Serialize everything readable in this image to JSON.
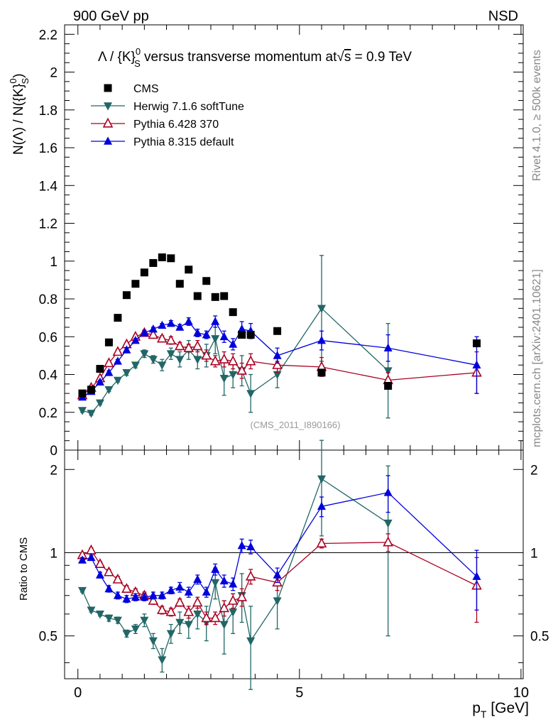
{
  "header": {
    "left": "900 GeV pp",
    "right": "NSD"
  },
  "side": {
    "rivet": "Rivet 4.1.0, ≥ 500k events",
    "mcplots": "mcplots.cern.ch [arXiv:2401.10621]"
  },
  "chart_data": {
    "type": "scatter",
    "title": "Λ / {K}⁰_S versus transverse momentum at √s = 0.9 TeV",
    "title_parts": {
      "lead": "Λ / {K}",
      "sup": "0",
      "sub": "S",
      "mid": " versus transverse momentum at",
      "root": "√",
      "s": "s",
      "tail": " = 0.9 TeV"
    },
    "ylabel": "N(Λ)  /  N({K}⁰_S)",
    "ylabel_parts": {
      "lead": "N(Λ)  /  N({K}",
      "sup": "0",
      "sub": "S",
      "tail": ")"
    },
    "xlabel": "p_T [GeV]",
    "xlabel_parts": {
      "p": "p",
      "sub": "T",
      "tail": " [GeV]"
    },
    "ratio_ylabel": "Ratio to CMS",
    "watermark": "(CMS_2011_I890166)",
    "xlim": [
      -0.3,
      10.05
    ],
    "ylim": [
      0,
      2.25
    ],
    "ratio_ylim": [
      0.35,
      2.35
    ],
    "x_ticks": [
      0,
      5,
      10
    ],
    "x_tick_labels": [
      "0",
      "5",
      "10"
    ],
    "y_ticks": [
      0,
      0.2,
      0.4,
      0.6,
      0.8,
      1,
      1.2,
      1.4,
      1.6,
      1.8,
      2,
      2.2
    ],
    "y_tick_labels": [
      "0",
      "0.2",
      "0.4",
      "0.6",
      "0.8",
      "1",
      "1.2",
      "1.4",
      "1.6",
      "1.8",
      "2",
      "2.2"
    ],
    "ratio_ticks": [
      0.5,
      1,
      2
    ],
    "ratio_tick_labels": [
      "0.5",
      "1",
      "2"
    ],
    "x": [
      0.1,
      0.3,
      0.5,
      0.7,
      0.9,
      1.1,
      1.3,
      1.5,
      1.7,
      1.9,
      2.1,
      2.3,
      2.5,
      2.7,
      2.9,
      3.1,
      3.3,
      3.5,
      3.7,
      3.9,
      4.5,
      5.5,
      7.0,
      9.0
    ],
    "series": [
      {
        "name": "CMS",
        "color": "#000000",
        "marker": "square",
        "values": [
          0.3,
          0.32,
          0.43,
          0.57,
          0.7,
          0.82,
          0.88,
          0.94,
          0.99,
          1.02,
          1.015,
          0.88,
          0.955,
          0.815,
          0.895,
          0.81,
          0.815,
          0.73,
          0.61,
          0.61,
          0.63,
          0.41,
          0.34,
          0.565
        ],
        "errors": [
          0.01,
          0.01,
          0.01,
          0.01,
          0.01,
          0.01,
          0.01,
          0.01,
          0.01,
          0.01,
          0.01,
          0.01,
          0.01,
          0.01,
          0.01,
          0.01,
          0.01,
          0.01,
          0.01,
          0.01,
          0.01,
          0.01,
          0.01,
          0.01
        ]
      },
      {
        "name": "Herwig 7.1.6 softTune",
        "color": "#226666",
        "marker": "triangle-down",
        "values": [
          0.21,
          0.195,
          0.25,
          0.32,
          0.37,
          0.41,
          0.45,
          0.51,
          0.48,
          0.45,
          0.51,
          0.48,
          0.53,
          0.48,
          0.5,
          0.59,
          0.38,
          0.4,
          0.42,
          0.3,
          0.4,
          0.75,
          0.42,
          null
        ],
        "errors": [
          0.01,
          0.01,
          0.01,
          0.01,
          0.01,
          0.015,
          0.015,
          0.02,
          0.02,
          0.03,
          0.03,
          0.04,
          0.05,
          0.05,
          0.06,
          0.08,
          0.09,
          0.07,
          0.08,
          0.1,
          0.07,
          0.28,
          0.25,
          null
        ]
      },
      {
        "name": "Pythia 6.428 370",
        "color": "#aa0022",
        "marker": "triangle-open",
        "values": [
          0.29,
          0.33,
          0.38,
          0.46,
          0.52,
          0.56,
          0.6,
          0.62,
          0.61,
          0.59,
          0.58,
          0.55,
          0.54,
          0.55,
          0.5,
          0.47,
          0.48,
          0.47,
          0.42,
          0.47,
          0.45,
          0.44,
          0.37,
          0.41
        ],
        "errors": [
          0.01,
          0.01,
          0.01,
          0.01,
          0.01,
          0.01,
          0.01,
          0.015,
          0.015,
          0.015,
          0.02,
          0.02,
          0.02,
          0.03,
          0.03,
          0.03,
          0.04,
          0.04,
          0.04,
          0.04,
          0.04,
          0.05,
          0.04,
          0.11
        ]
      },
      {
        "name": "Pythia 8.315 default",
        "color": "#0000dd",
        "marker": "triangle-up",
        "values": [
          0.28,
          0.31,
          0.36,
          0.41,
          0.47,
          0.53,
          0.58,
          0.62,
          0.64,
          0.66,
          0.67,
          0.65,
          0.68,
          0.62,
          0.61,
          0.68,
          0.6,
          0.56,
          0.64,
          0.63,
          0.5,
          0.58,
          0.54,
          0.45
        ],
        "errors": [
          0.01,
          0.01,
          0.01,
          0.01,
          0.01,
          0.01,
          0.01,
          0.01,
          0.01,
          0.01,
          0.015,
          0.015,
          0.02,
          0.02,
          0.02,
          0.03,
          0.03,
          0.03,
          0.04,
          0.04,
          0.04,
          0.05,
          0.07,
          0.15
        ]
      }
    ],
    "ratio_series": [
      {
        "name": "Herwig 7.1.6 softTune",
        "color": "#226666",
        "marker": "triangle-down",
        "values": [
          0.73,
          0.62,
          0.6,
          0.58,
          0.57,
          0.51,
          0.53,
          0.57,
          0.48,
          0.41,
          0.51,
          0.56,
          0.55,
          0.6,
          0.56,
          0.78,
          0.55,
          0.61,
          0.7,
          0.48,
          0.67,
          1.85,
          1.28,
          null
        ],
        "errors": [
          0.01,
          0.01,
          0.01,
          0.015,
          0.015,
          0.015,
          0.02,
          0.03,
          0.03,
          0.04,
          0.04,
          0.05,
          0.06,
          0.07,
          0.08,
          0.1,
          0.12,
          0.1,
          0.14,
          0.16,
          0.14,
          0.7,
          0.78,
          null
        ]
      },
      {
        "name": "Pythia 6.428 370",
        "color": "#aa0022",
        "marker": "triangle-open",
        "values": [
          0.98,
          1.02,
          0.91,
          0.85,
          0.8,
          0.74,
          0.72,
          0.7,
          0.67,
          0.62,
          0.61,
          0.66,
          0.61,
          0.66,
          0.58,
          0.58,
          0.63,
          0.67,
          0.69,
          0.82,
          0.78,
          1.08,
          1.09,
          0.76
        ],
        "errors": [
          0.02,
          0.02,
          0.02,
          0.02,
          0.02,
          0.02,
          0.02,
          0.02,
          0.02,
          0.02,
          0.02,
          0.02,
          0.03,
          0.03,
          0.03,
          0.03,
          0.04,
          0.04,
          0.05,
          0.05,
          0.05,
          0.04,
          0.08,
          0.2
        ]
      },
      {
        "name": "Pythia 8.315 default",
        "color": "#0000dd",
        "marker": "triangle-up",
        "values": [
          0.94,
          0.96,
          0.83,
          0.74,
          0.7,
          0.68,
          0.69,
          0.69,
          0.7,
          0.7,
          0.73,
          0.75,
          0.72,
          0.8,
          0.72,
          0.87,
          0.79,
          0.77,
          1.06,
          1.05,
          0.83,
          1.47,
          1.65,
          0.82
        ],
        "errors": [
          0.02,
          0.02,
          0.02,
          0.02,
          0.02,
          0.02,
          0.02,
          0.02,
          0.02,
          0.02,
          0.02,
          0.03,
          0.03,
          0.03,
          0.03,
          0.04,
          0.04,
          0.04,
          0.06,
          0.06,
          0.05,
          0.12,
          0.25,
          0.2
        ]
      }
    ]
  }
}
